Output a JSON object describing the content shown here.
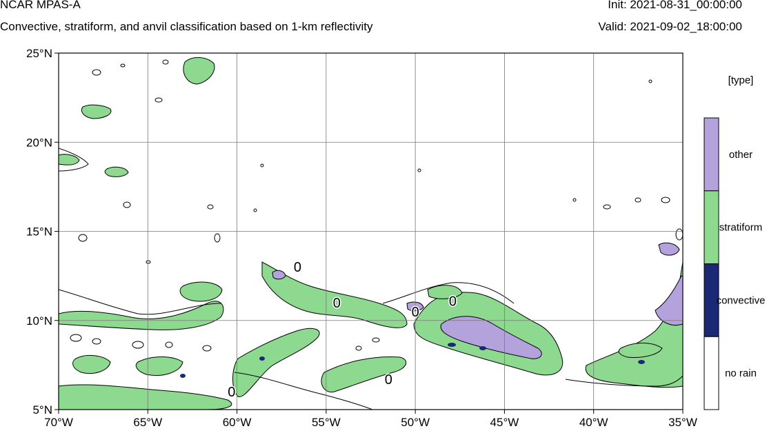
{
  "header": {
    "title": "NCAR MPAS-A",
    "subtitle": "Convective, stratiform, and anvil classification based on 1-km reflectivity",
    "init": "Init: 2021-08-31_00:00:00",
    "valid": "Valid: 2021-09-02_18:00:00"
  },
  "map": {
    "lon_range": [
      -70,
      -35
    ],
    "lat_range": [
      5,
      25
    ],
    "x_ticks": [
      {
        "value": -70,
        "label": "70°W"
      },
      {
        "value": -65,
        "label": "65°W"
      },
      {
        "value": -60,
        "label": "60°W"
      },
      {
        "value": -55,
        "label": "55°W"
      },
      {
        "value": -50,
        "label": "50°W"
      },
      {
        "value": -45,
        "label": "45°W"
      },
      {
        "value": -40,
        "label": "40°W"
      },
      {
        "value": -35,
        "label": "35°W"
      }
    ],
    "y_ticks": [
      {
        "value": 5,
        "label": "5°N"
      },
      {
        "value": 10,
        "label": "10°N"
      },
      {
        "value": 15,
        "label": "15°N"
      },
      {
        "value": 20,
        "label": "20°N"
      },
      {
        "value": 25,
        "label": "25°N"
      }
    ],
    "gridlines": true,
    "contour_labels": [
      {
        "lon": -60.3,
        "lat": 6.0,
        "text": "0"
      },
      {
        "lon": -56.6,
        "lat": 13.0,
        "text": "0"
      },
      {
        "lon": -54.4,
        "lat": 11.0,
        "text": "0"
      },
      {
        "lon": -50.0,
        "lat": 10.5,
        "text": "0"
      },
      {
        "lon": -47.9,
        "lat": 11.1,
        "text": "0"
      },
      {
        "lon": -51.5,
        "lat": 6.7,
        "text": "0"
      }
    ],
    "colors": {
      "other": "#b3a2db",
      "stratiform": "#8ed990",
      "convective": "#1b2876",
      "no_rain": "#ffffff"
    }
  },
  "legend": {
    "title": "[type]",
    "items": [
      {
        "label": "other",
        "color": "#b3a2db"
      },
      {
        "label": "stratiform",
        "color": "#8ed990"
      },
      {
        "label": "convective",
        "color": "#1b2876"
      },
      {
        "label": "no rain",
        "color": "#ffffff"
      }
    ]
  }
}
